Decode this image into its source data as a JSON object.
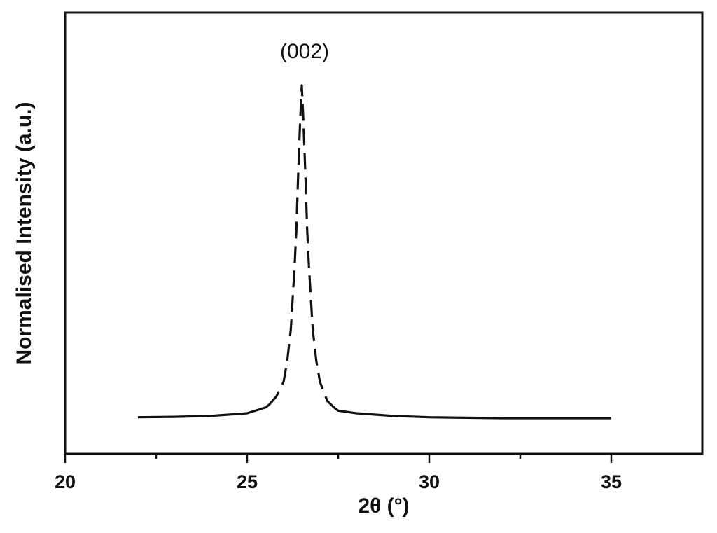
{
  "chart_data": {
    "type": "line",
    "xlabel": "2θ (°)",
    "ylabel": "Normalised Intensity (a.u.)",
    "annotation": "(002)",
    "xlim": [
      20,
      37.5
    ],
    "ylim": [
      0,
      1
    ],
    "xticks": [
      20,
      25,
      30,
      35
    ],
    "xminorticks": [
      22.5,
      27.5,
      32.5
    ],
    "color": "#111111",
    "series": [
      {
        "style": "solid",
        "x": [
          22,
          23,
          24,
          25,
          25.5,
          25.6
        ],
        "values": [
          0.083,
          0.084,
          0.086,
          0.092,
          0.105,
          0.111
        ]
      },
      {
        "style": "dashed",
        "x": [
          25.6,
          25.8,
          26.0,
          26.1,
          26.2,
          26.3,
          26.35,
          26.4,
          26.45,
          26.5,
          26.55,
          26.6,
          26.65,
          26.7,
          26.8,
          26.9,
          27.0,
          27.2,
          27.4
        ],
        "values": [
          0.111,
          0.13,
          0.163,
          0.21,
          0.283,
          0.42,
          0.505,
          0.63,
          0.743,
          0.835,
          0.743,
          0.63,
          0.505,
          0.42,
          0.283,
          0.21,
          0.163,
          0.12,
          0.104
        ]
      },
      {
        "style": "solid",
        "x": [
          27.4,
          27.5,
          28,
          29,
          30,
          32,
          35
        ],
        "values": [
          0.104,
          0.098,
          0.092,
          0.086,
          0.083,
          0.081,
          0.081
        ]
      }
    ]
  }
}
